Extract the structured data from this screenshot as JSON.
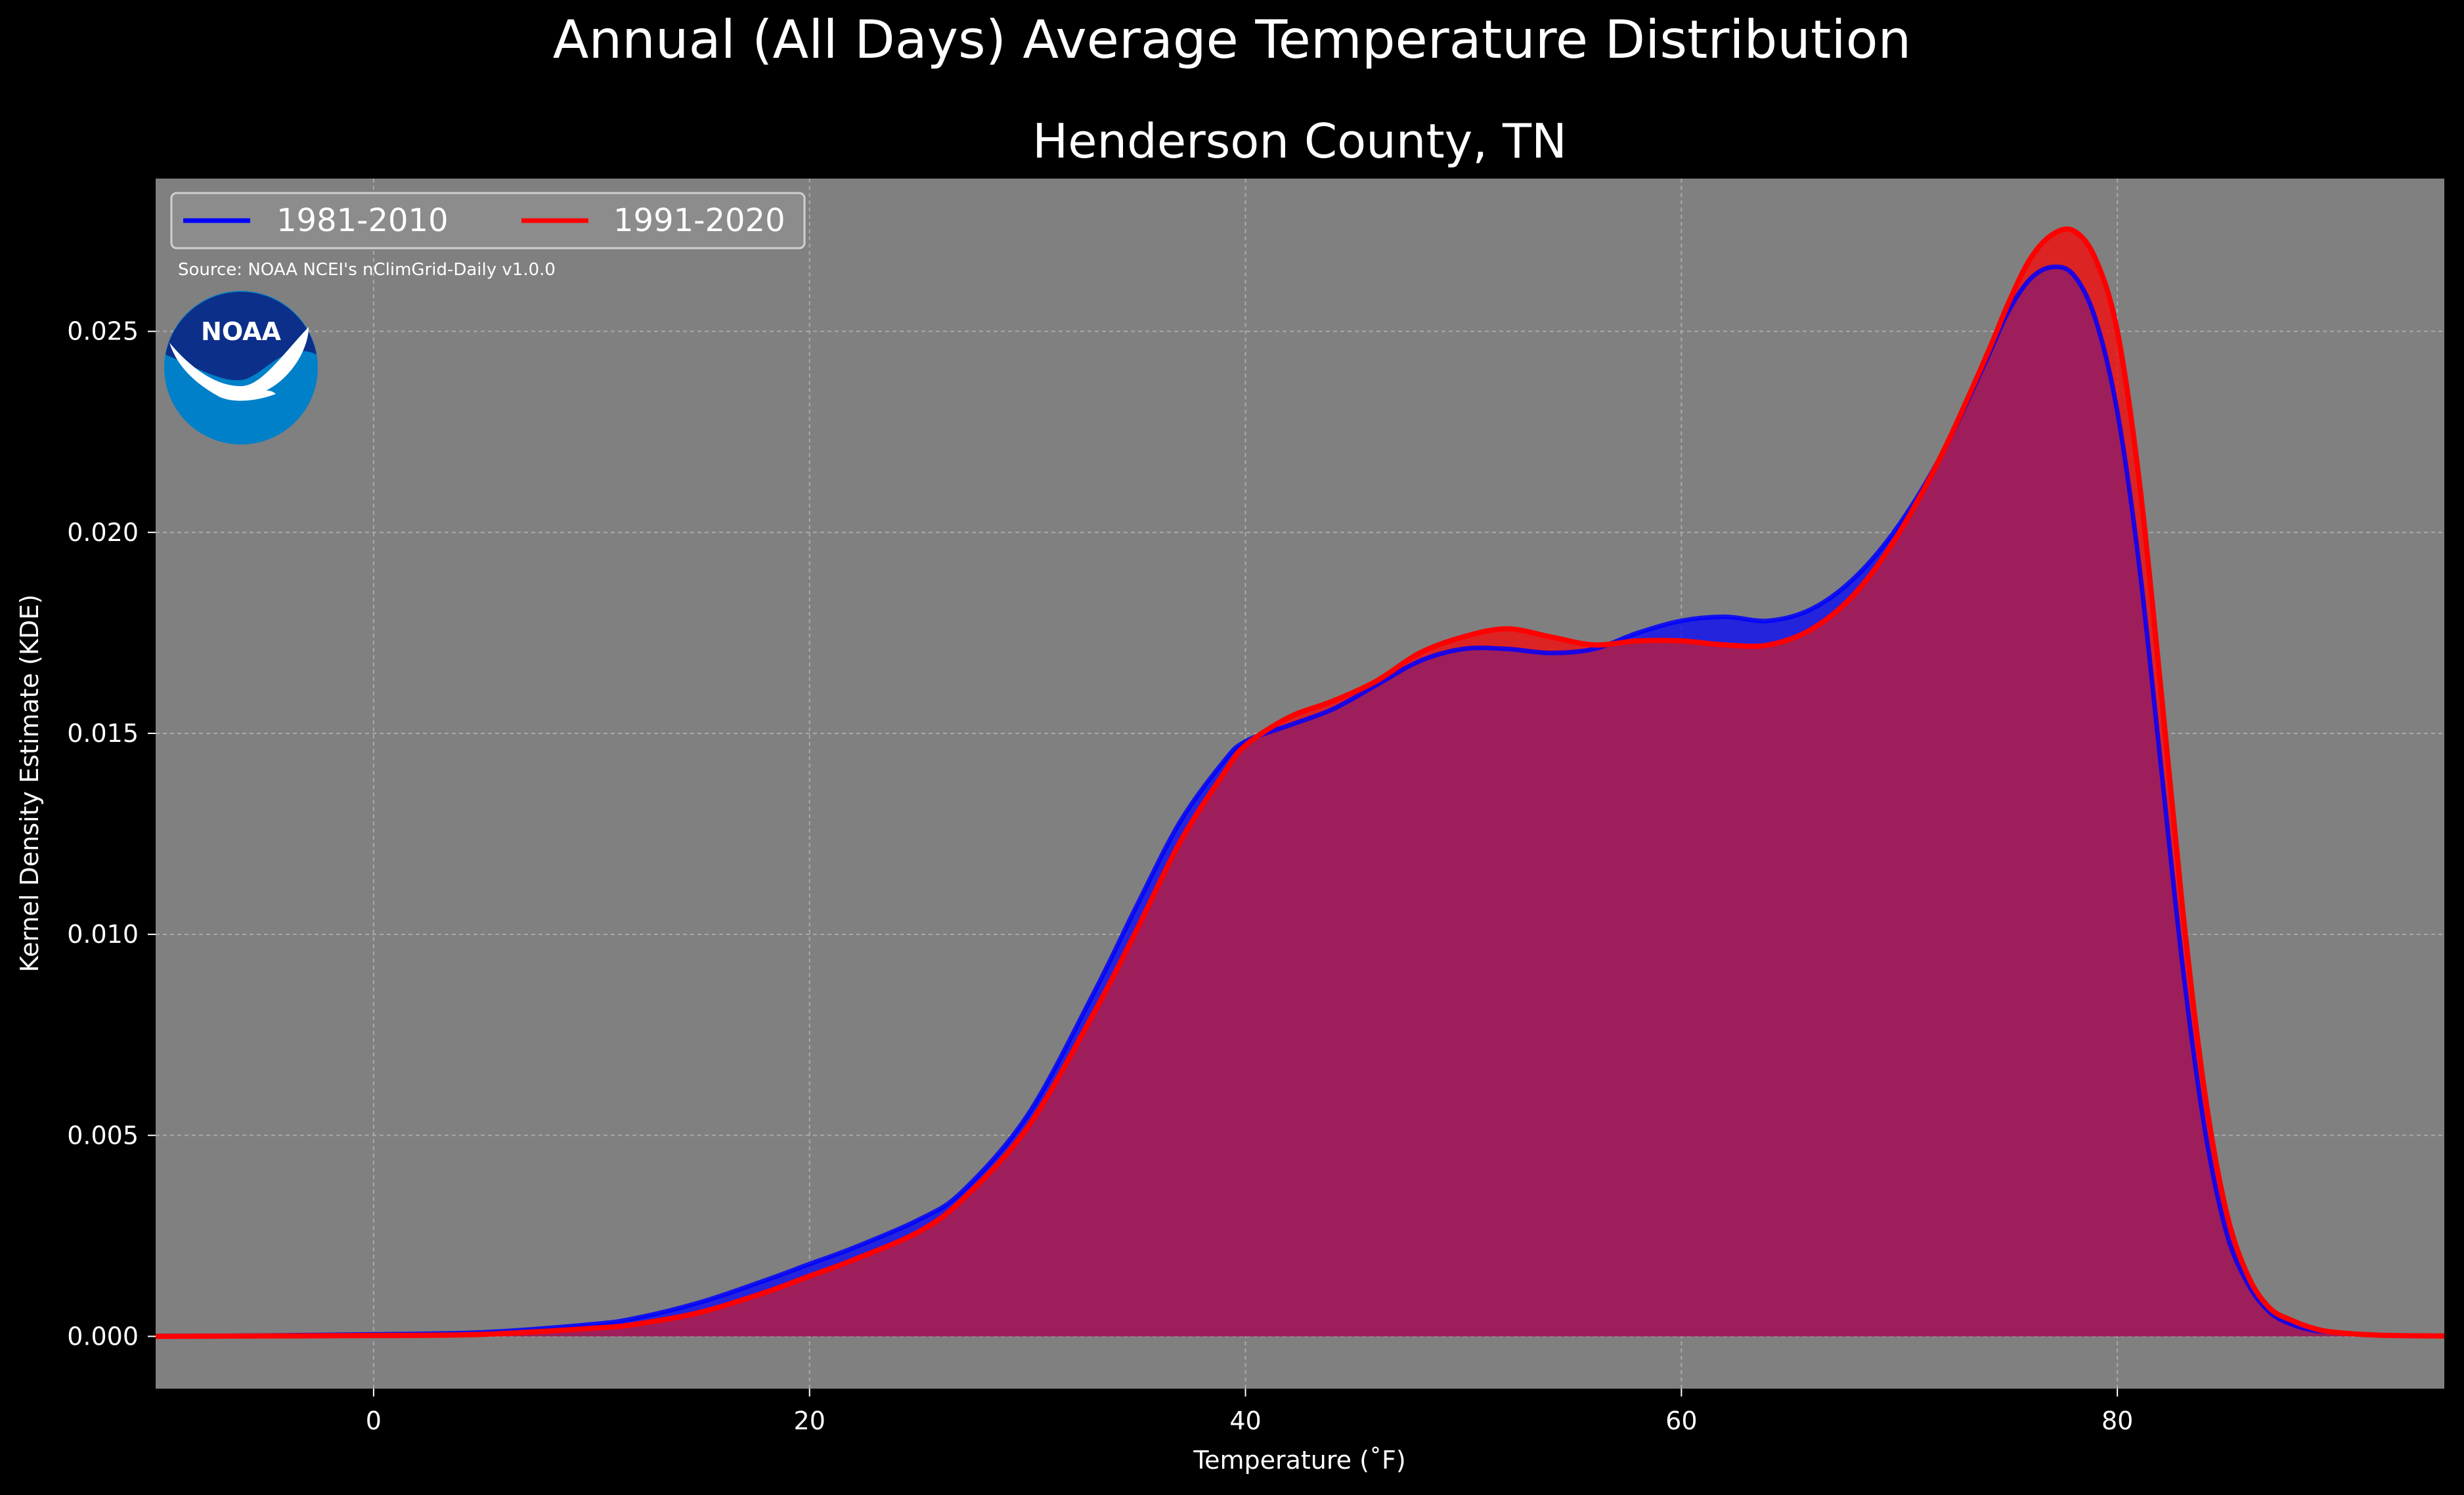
{
  "suptitle": "Annual (All Days) Average Temperature Distribution",
  "source_note": "Source: NOAA NCEI's nClimGrid-Daily v1.0.0",
  "logo": {
    "text": "NOAA",
    "outer_color": "#0080c8",
    "inner_color": "#0c2f8a"
  },
  "colors": {
    "figure_bg": "#000000",
    "axes_bg": "#808080",
    "grid": "#b4b4b4",
    "overlap_fill": "#9c1f5c"
  },
  "chart_data": {
    "type": "area",
    "title": "Henderson County, TN",
    "xlabel": "Temperature ($^\\circ$F)",
    "xlabel_display": "Temperature (˚F)",
    "ylabel": "Kernel Density Estimate (KDE)",
    "xlim": [
      -10,
      95
    ],
    "ylim": [
      -0.0013,
      0.0288
    ],
    "xticks": [
      0,
      20,
      40,
      60,
      80
    ],
    "yticks": [
      0.0,
      0.005,
      0.01,
      0.015,
      0.02,
      0.025
    ],
    "ytick_labels": [
      "0.000",
      "0.005",
      "0.010",
      "0.015",
      "0.020",
      "0.025"
    ],
    "grid": true,
    "legend": {
      "placement": "top-left",
      "columns": 2
    },
    "x": [
      -10,
      -5,
      0,
      5,
      10,
      12,
      15,
      18,
      20,
      22,
      25,
      27,
      30,
      33,
      35,
      37,
      39,
      40,
      42,
      44,
      46,
      48,
      50,
      52,
      54,
      56,
      58,
      60,
      62,
      64,
      66,
      68,
      70,
      72,
      74,
      75,
      76,
      77,
      78,
      79,
      80,
      81,
      82,
      83,
      84,
      85,
      86,
      87,
      88,
      89,
      90,
      92,
      95
    ],
    "series": [
      {
        "name": "1981-2010",
        "color": "#0000ff",
        "values": [
          1e-05,
          2e-05,
          5e-05,
          0.0001,
          0.0003,
          0.00045,
          0.00085,
          0.0014,
          0.0018,
          0.0022,
          0.0029,
          0.0036,
          0.0055,
          0.0085,
          0.0107,
          0.0128,
          0.0143,
          0.0148,
          0.0152,
          0.0156,
          0.0162,
          0.0168,
          0.0171,
          0.0171,
          0.017,
          0.0171,
          0.0175,
          0.0178,
          0.0179,
          0.0178,
          0.0181,
          0.0189,
          0.0202,
          0.022,
          0.0243,
          0.0255,
          0.0263,
          0.0266,
          0.0264,
          0.0253,
          0.023,
          0.0192,
          0.0142,
          0.0092,
          0.0052,
          0.0026,
          0.0013,
          0.0006,
          0.0003,
          0.00015,
          0.0001,
          3e-05,
          1e-05
        ]
      },
      {
        "name": "1991-2020",
        "color": "#ff0000",
        "values": [
          0.0,
          1e-05,
          2e-05,
          5e-05,
          0.0002,
          0.0003,
          0.0006,
          0.0011,
          0.0015,
          0.0019,
          0.0026,
          0.0034,
          0.0052,
          0.008,
          0.0101,
          0.0123,
          0.014,
          0.0147,
          0.0154,
          0.0158,
          0.0163,
          0.017,
          0.0174,
          0.0176,
          0.0174,
          0.0172,
          0.0173,
          0.0173,
          0.0172,
          0.0172,
          0.0176,
          0.0185,
          0.02,
          0.022,
          0.0244,
          0.0257,
          0.0268,
          0.0274,
          0.0275,
          0.0268,
          0.025,
          0.0213,
          0.0161,
          0.0106,
          0.0061,
          0.0031,
          0.0015,
          0.0007,
          0.0004,
          0.0002,
          0.0001,
          3e-05,
          1e-05
        ]
      }
    ]
  }
}
